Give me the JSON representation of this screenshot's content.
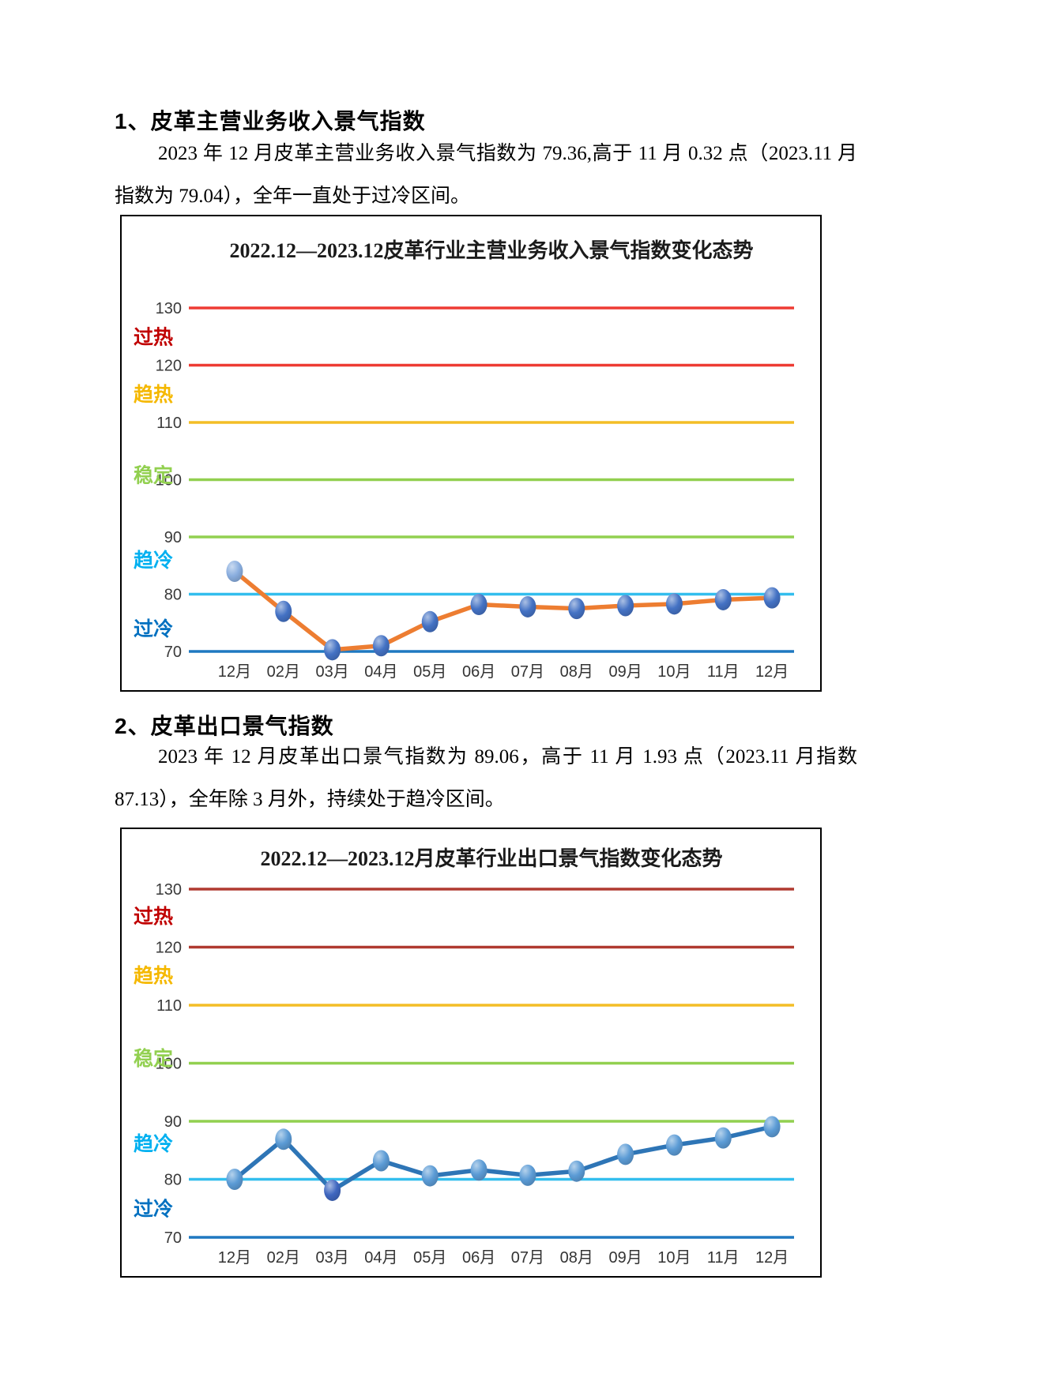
{
  "page": {
    "kind": "report-page",
    "background": "#ffffff"
  },
  "sections": [
    {
      "heading": "1、皮革主营业务收入景气指数",
      "paragraph": "2023 年 12 月皮革主营业务收入景气指数为 79.36,高于 11 月 0.32 点（2023.11 月指数为 79.04），全年一直处于过冷区间。"
    },
    {
      "heading": "2、皮革出口景气指数",
      "paragraph": "2023 年 12 月皮革出口景气指数为 89.06，高于 11 月 1.93 点（2023.11 月指数 87.13），全年除 3 月外，持续处于趋冷区间。"
    }
  ],
  "chart_data": [
    {
      "type": "line",
      "title": "2022.12—2023.12皮革行业主营业务收入景气指数变化态势",
      "categories": [
        "12月",
        "02月",
        "03月",
        "04月",
        "05月",
        "06月",
        "07月",
        "08月",
        "09月",
        "10月",
        "11月",
        "12月"
      ],
      "series": [
        {
          "name": "皮革主营业务收入景气指数",
          "values": [
            84.0,
            77.0,
            70.3,
            71.0,
            75.2,
            78.2,
            77.8,
            77.5,
            78.0,
            78.3,
            79.04,
            79.36
          ]
        }
      ],
      "ylim": [
        70,
        130
      ],
      "grid": "horizontal-colored",
      "legend": "none",
      "line_color": "#ED7D31",
      "marker_color": "#4472C4",
      "marker_overrides": {
        "0": "#8AAEDF"
      },
      "gridlines": [
        {
          "value": 130,
          "color": "#EE3B33"
        },
        {
          "value": 120,
          "color": "#EE3B33"
        },
        {
          "value": 110,
          "color": "#F3BE26"
        },
        {
          "value": 100,
          "color": "#92D050"
        },
        {
          "value": 90,
          "color": "#92D050"
        },
        {
          "value": 80,
          "color": "#33BEEE"
        },
        {
          "value": 70,
          "color": "#1F78C1"
        }
      ],
      "zone_labels": [
        {
          "text": "过热",
          "color": "#C00000",
          "value": 125
        },
        {
          "text": "趋热",
          "color": "#F5B800",
          "value": 115
        },
        {
          "text": "稳定",
          "color": "#92D050",
          "value": 100.8
        },
        {
          "text": "趋冷",
          "color": "#00B0F0",
          "value": 86
        },
        {
          "text": "过冷",
          "color": "#0070C0",
          "value": 74
        }
      ]
    },
    {
      "type": "line",
      "title": "2022.12—2023.12月皮革行业出口景气指数变化态势",
      "categories": [
        "12月",
        "02月",
        "03月",
        "04月",
        "05月",
        "06月",
        "07月",
        "08月",
        "09月",
        "10月",
        "11月",
        "12月"
      ],
      "series": [
        {
          "name": "皮革出口景气指数",
          "values": [
            80.0,
            86.9,
            78.1,
            83.2,
            80.6,
            81.6,
            80.7,
            81.4,
            84.3,
            85.9,
            87.13,
            89.06
          ]
        }
      ],
      "ylim": [
        70,
        130
      ],
      "grid": "horizontal-colored",
      "legend": "none",
      "line_color": "#2E75B6",
      "marker_color": "#5B9BD5",
      "marker_overrides": {
        "2": "#4067C0"
      },
      "gridlines": [
        {
          "value": 130,
          "color": "#B03A30"
        },
        {
          "value": 120,
          "color": "#B03A30"
        },
        {
          "value": 110,
          "color": "#F3BE26"
        },
        {
          "value": 100,
          "color": "#92D050"
        },
        {
          "value": 90,
          "color": "#92D050"
        },
        {
          "value": 80,
          "color": "#33BEEE"
        },
        {
          "value": 70,
          "color": "#1F78C1"
        }
      ],
      "zone_labels": [
        {
          "text": "过热",
          "color": "#C00000",
          "value": 125.4
        },
        {
          "text": "趋热",
          "color": "#F5B800",
          "value": 115.2
        },
        {
          "text": "稳定",
          "color": "#92D050",
          "value": 100.9
        },
        {
          "text": "趋冷",
          "color": "#00B0F0",
          "value": 86.2
        },
        {
          "text": "过冷",
          "color": "#0070C0",
          "value": 75.0
        }
      ]
    }
  ]
}
